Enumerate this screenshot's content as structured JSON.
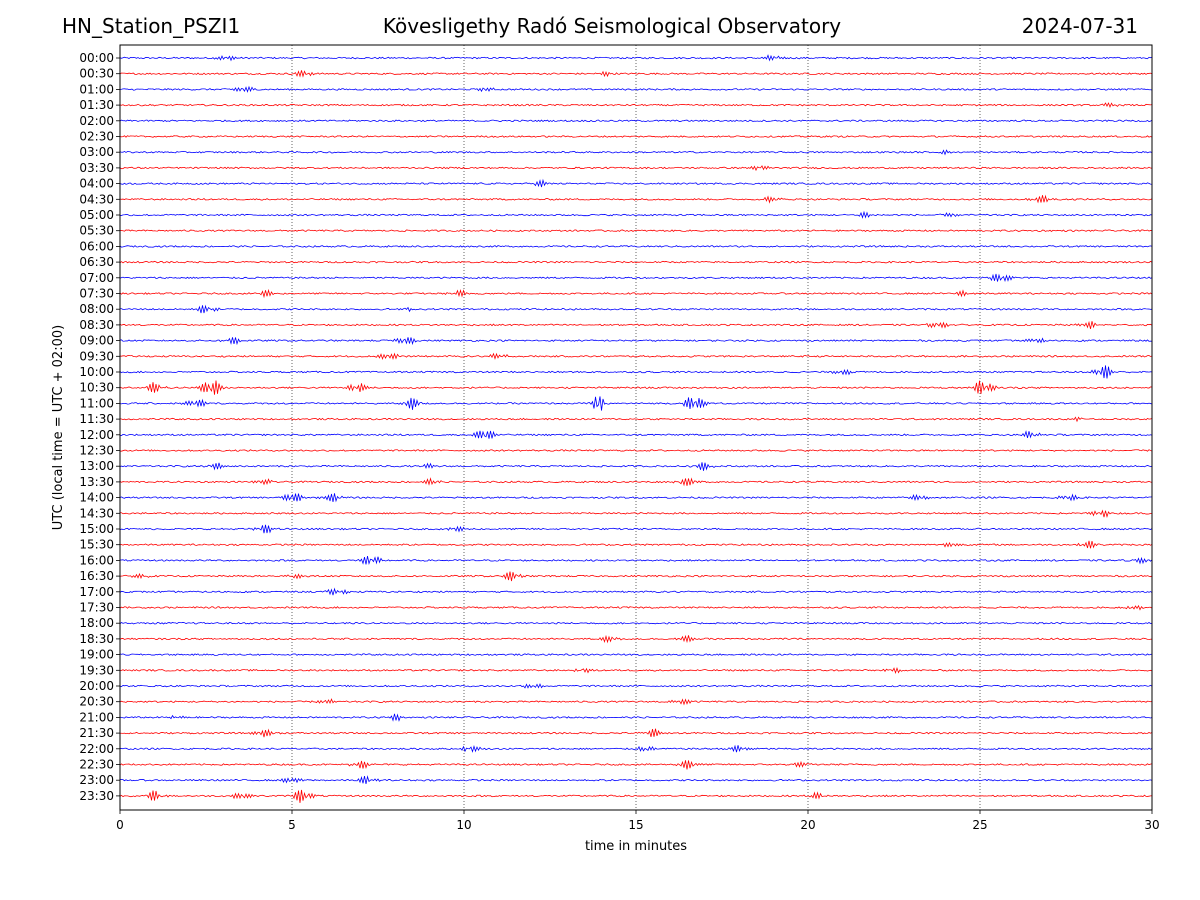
{
  "header": {
    "station": "HN_Station_PSZI1",
    "observatory": "Kövesligethy Radó Seismological Observatory",
    "date": "2024-07-31"
  },
  "chart_data": {
    "type": "line",
    "title": "Kövesligethy Radó Seismological Observatory",
    "xlabel": "time in minutes",
    "ylabel": "UTC (local time = UTC + 02:00)",
    "xlim": [
      0,
      30
    ],
    "xticks": [
      "0",
      "5",
      "10",
      "15",
      "20",
      "25",
      "30"
    ],
    "grid": "vertical dotted at 5-minute intervals",
    "colors": {
      "even_rows": "#0000ff",
      "odd_rows": "#ff0000"
    },
    "rows": [
      {
        "label": "00:00",
        "events": [
          [
            3.1,
            0.25
          ],
          [
            19.0,
            0.3
          ]
        ]
      },
      {
        "label": "00:30",
        "events": [
          [
            5.35,
            0.35
          ],
          [
            14.1,
            0.2
          ]
        ]
      },
      {
        "label": "01:00",
        "events": [
          [
            3.6,
            0.4
          ],
          [
            10.6,
            0.2
          ]
        ]
      },
      {
        "label": "01:30",
        "events": [
          [
            28.8,
            0.2
          ]
        ]
      },
      {
        "label": "02:00",
        "events": []
      },
      {
        "label": "02:30",
        "events": []
      },
      {
        "label": "03:00",
        "events": [
          [
            24.0,
            0.15
          ]
        ]
      },
      {
        "label": "03:30",
        "events": [
          [
            18.6,
            0.3
          ]
        ]
      },
      {
        "label": "04:00",
        "events": [
          [
            12.2,
            0.35
          ]
        ]
      },
      {
        "label": "04:30",
        "events": [
          [
            18.9,
            0.25
          ],
          [
            26.8,
            0.4
          ]
        ]
      },
      {
        "label": "05:00",
        "events": [
          [
            21.6,
            0.3
          ],
          [
            24.2,
            0.2
          ]
        ]
      },
      {
        "label": "05:30",
        "events": []
      },
      {
        "label": "06:00",
        "events": []
      },
      {
        "label": "06:30",
        "events": []
      },
      {
        "label": "07:00",
        "events": [
          [
            25.6,
            0.55
          ]
        ]
      },
      {
        "label": "07:30",
        "events": [
          [
            4.2,
            0.35
          ],
          [
            9.9,
            0.3
          ],
          [
            24.5,
            0.3
          ]
        ]
      },
      {
        "label": "08:00",
        "events": [
          [
            2.5,
            0.45
          ],
          [
            8.3,
            0.2
          ]
        ]
      },
      {
        "label": "08:30",
        "events": [
          [
            23.8,
            0.4
          ],
          [
            28.2,
            0.35
          ]
        ]
      },
      {
        "label": "09:00",
        "events": [
          [
            8.3,
            0.45
          ],
          [
            3.3,
            0.35
          ],
          [
            26.6,
            0.3
          ]
        ]
      },
      {
        "label": "09:30",
        "events": [
          [
            7.8,
            0.4
          ],
          [
            11.0,
            0.3
          ]
        ]
      },
      {
        "label": "10:00",
        "events": [
          [
            28.6,
            0.7
          ],
          [
            21.0,
            0.3
          ]
        ]
      },
      {
        "label": "10:30",
        "events": [
          [
            2.65,
            1.0
          ],
          [
            6.9,
            0.5
          ],
          [
            25.1,
            0.85
          ],
          [
            1.0,
            0.5
          ]
        ]
      },
      {
        "label": "11:00",
        "events": [
          [
            13.9,
            2.2
          ],
          [
            16.7,
            0.9
          ],
          [
            8.5,
            0.6
          ],
          [
            2.2,
            0.5
          ]
        ]
      },
      {
        "label": "11:30",
        "events": [
          [
            27.9,
            0.2
          ]
        ]
      },
      {
        "label": "12:00",
        "events": [
          [
            10.6,
            0.7
          ],
          [
            26.5,
            0.4
          ]
        ]
      },
      {
        "label": "12:30",
        "events": []
      },
      {
        "label": "13:00",
        "events": [
          [
            17.0,
            0.45
          ],
          [
            2.8,
            0.35
          ],
          [
            9.0,
            0.2
          ]
        ]
      },
      {
        "label": "13:30",
        "events": [
          [
            16.5,
            0.45
          ],
          [
            9.0,
            0.3
          ],
          [
            4.2,
            0.25
          ]
        ]
      },
      {
        "label": "14:00",
        "events": [
          [
            5.0,
            0.6
          ],
          [
            6.2,
            0.45
          ],
          [
            23.2,
            0.35
          ],
          [
            27.6,
            0.3
          ]
        ]
      },
      {
        "label": "14:30",
        "events": [
          [
            28.5,
            0.45
          ]
        ]
      },
      {
        "label": "15:00",
        "events": [
          [
            4.2,
            0.45
          ],
          [
            9.8,
            0.25
          ]
        ]
      },
      {
        "label": "15:30",
        "events": [
          [
            28.2,
            0.35
          ],
          [
            24.2,
            0.3
          ]
        ]
      },
      {
        "label": "16:00",
        "events": [
          [
            7.3,
            0.6
          ],
          [
            29.8,
            0.3
          ]
        ]
      },
      {
        "label": "16:30",
        "events": [
          [
            11.4,
            0.55
          ],
          [
            5.1,
            0.25
          ],
          [
            0.6,
            0.2
          ]
        ]
      },
      {
        "label": "17:00",
        "events": [
          [
            6.3,
            0.35
          ]
        ]
      },
      {
        "label": "17:30",
        "events": [
          [
            29.5,
            0.2
          ]
        ]
      },
      {
        "label": "18:00",
        "events": []
      },
      {
        "label": "18:30",
        "events": [
          [
            14.2,
            0.3
          ],
          [
            16.5,
            0.3
          ]
        ]
      },
      {
        "label": "19:00",
        "events": []
      },
      {
        "label": "19:30",
        "events": [
          [
            13.5,
            0.2
          ],
          [
            22.5,
            0.2
          ]
        ]
      },
      {
        "label": "20:00",
        "events": [
          [
            12.0,
            0.25
          ]
        ]
      },
      {
        "label": "20:30",
        "events": [
          [
            6.0,
            0.25
          ],
          [
            16.3,
            0.3
          ]
        ]
      },
      {
        "label": "21:00",
        "events": [
          [
            8.0,
            0.35
          ],
          [
            1.7,
            0.2
          ]
        ]
      },
      {
        "label": "21:30",
        "events": [
          [
            4.2,
            0.4
          ],
          [
            15.5,
            0.45
          ]
        ]
      },
      {
        "label": "22:00",
        "events": [
          [
            10.2,
            0.4
          ],
          [
            18.0,
            0.35
          ],
          [
            15.3,
            0.3
          ]
        ]
      },
      {
        "label": "22:30",
        "events": [
          [
            16.5,
            0.45
          ],
          [
            7.0,
            0.4
          ],
          [
            19.8,
            0.3
          ]
        ]
      },
      {
        "label": "23:00",
        "events": [
          [
            7.2,
            0.4
          ],
          [
            5.0,
            0.3
          ]
        ]
      },
      {
        "label": "23:30",
        "events": [
          [
            5.3,
            0.7
          ],
          [
            1.0,
            0.5
          ],
          [
            3.5,
            0.35
          ],
          [
            20.3,
            0.3
          ]
        ]
      }
    ]
  }
}
